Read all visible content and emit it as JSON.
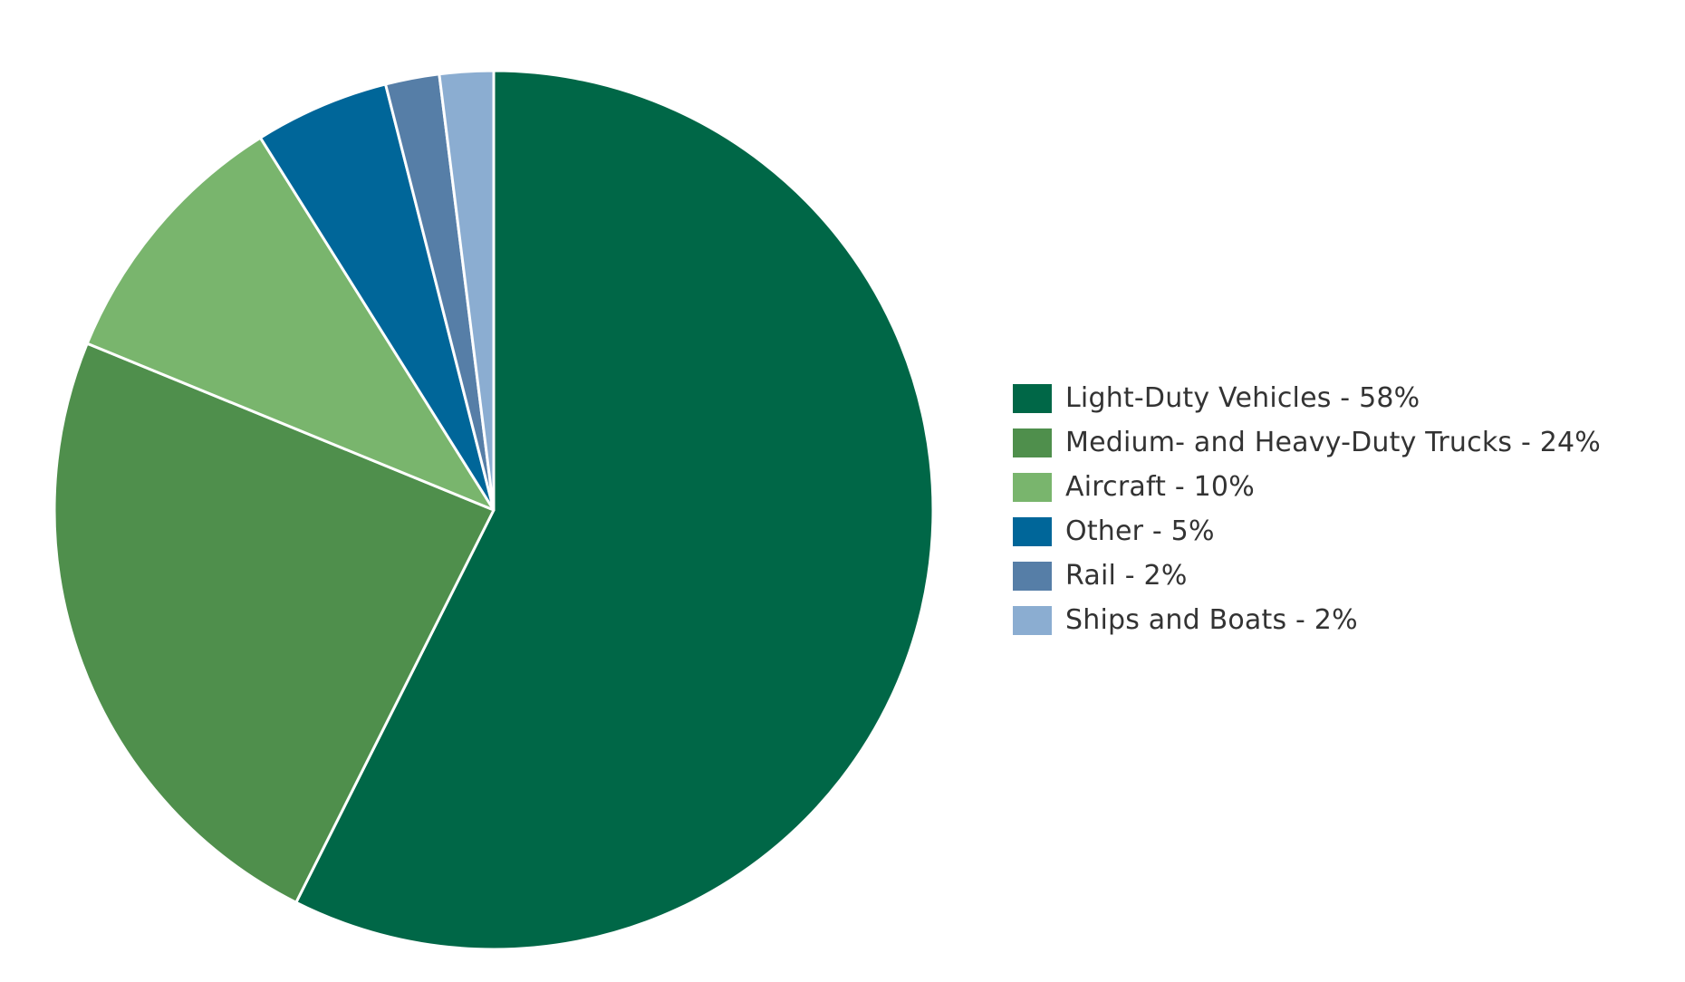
{
  "chart_data": {
    "type": "pie",
    "title": "",
    "start_angle_deg": 0,
    "direction": "clockwise",
    "legend_position": "right",
    "slices": [
      {
        "label": "Light-Duty Vehicles - 58%",
        "category": "Light-Duty Vehicles",
        "value": 58,
        "color": "#006747"
      },
      {
        "label": "Medium- and Heavy-Duty Trucks - 24%",
        "category": "Medium- and Heavy-Duty Trucks",
        "value": 24,
        "color": "#4f8f4c"
      },
      {
        "label": "Aircraft - 10%",
        "category": "Aircraft",
        "value": 10,
        "color": "#79b56d"
      },
      {
        "label": "Other - 5%",
        "category": "Other",
        "value": 5,
        "color": "#006699"
      },
      {
        "label": "Rail - 2%",
        "category": "Rail",
        "value": 2,
        "color": "#567ea7"
      },
      {
        "label": "Ships and Boats - 2%",
        "category": "Ships and Boats",
        "value": 2,
        "color": "#8badd1"
      }
    ],
    "slice_border_color": "#ffffff"
  }
}
